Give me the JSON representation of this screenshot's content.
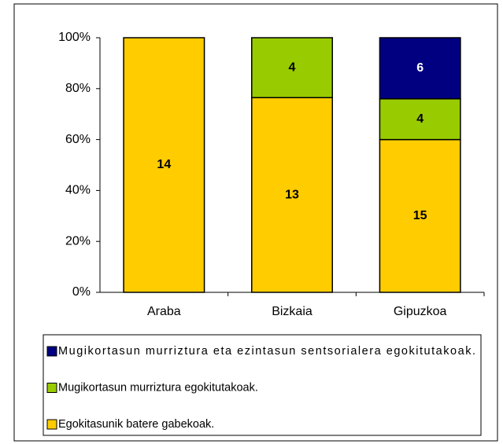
{
  "chart_data": {
    "type": "bar",
    "stacking": "percent",
    "categories": [
      "Araba",
      "Bizkaia",
      "Gipuzkoa"
    ],
    "series": [
      {
        "name": "Mugikortasun murriztura eta ezintasun sentsorialera egokitutakoak.",
        "color": "#000080",
        "label_color": "#ffffff",
        "values": [
          null,
          null,
          6
        ]
      },
      {
        "name": "Mugikortasun murriztura egokitutakoak.",
        "color": "#99cc00",
        "label_color": "#000000",
        "values": [
          null,
          4,
          4
        ]
      },
      {
        "name": "Egokitasunik batere gabekoak.",
        "color": "#ffcc00",
        "label_color": "#000000",
        "values": [
          14,
          13,
          15
        ]
      }
    ],
    "ylim": [
      0,
      100
    ],
    "yticks": [
      {
        "value": 0,
        "label": "0%"
      },
      {
        "value": 20,
        "label": "20%"
      },
      {
        "value": 40,
        "label": "40%"
      },
      {
        "value": 60,
        "label": "60%"
      },
      {
        "value": 80,
        "label": "80%"
      },
      {
        "value": 100,
        "label": "100%"
      }
    ],
    "legend": "bottom"
  }
}
